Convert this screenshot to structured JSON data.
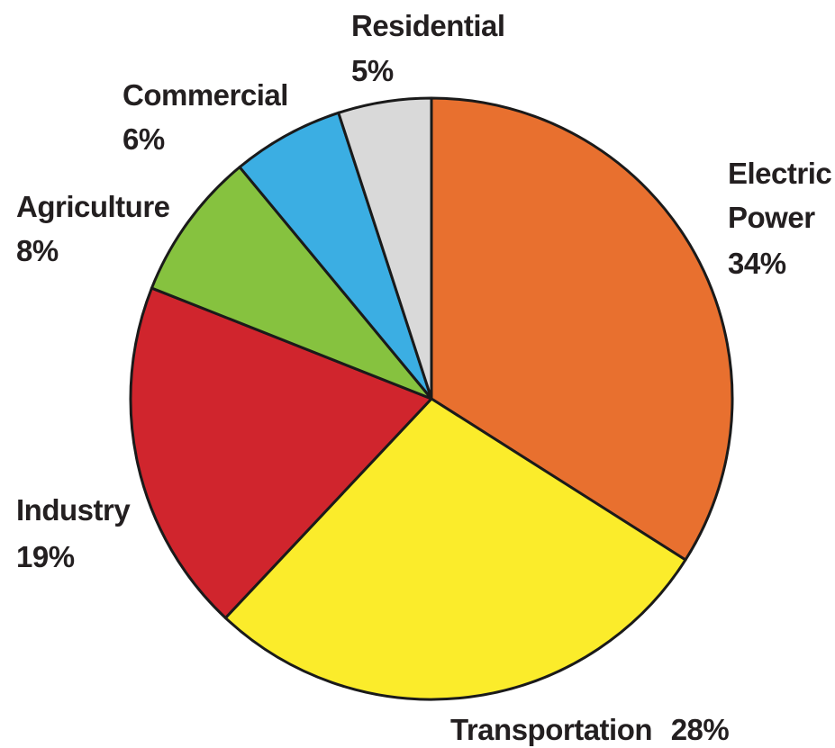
{
  "chart_data": {
    "type": "pie",
    "title": "",
    "slices": [
      {
        "label": "Electric Power",
        "label_lines": [
          "Electric",
          "Power"
        ],
        "value_text": "34%",
        "value": 34,
        "color": "#e8702f"
      },
      {
        "label": "Transportation",
        "label_lines": [
          "Transportation"
        ],
        "value_text": "28%",
        "value": 28,
        "color": "#fbec2b"
      },
      {
        "label": "Industry",
        "label_lines": [
          "Industry"
        ],
        "value_text": "19%",
        "value": 19,
        "color": "#d0252d"
      },
      {
        "label": "Agriculture",
        "label_lines": [
          "Agriculture"
        ],
        "value_text": "8%",
        "value": 8,
        "color": "#86c23f"
      },
      {
        "label": "Commercial",
        "label_lines": [
          "Commercial"
        ],
        "value_text": "6%",
        "value": 6,
        "color": "#3baee3"
      },
      {
        "label": "Residential",
        "label_lines": [
          "Residential"
        ],
        "value_text": "5%",
        "value": 5,
        "color": "#d9d9d9"
      }
    ]
  }
}
